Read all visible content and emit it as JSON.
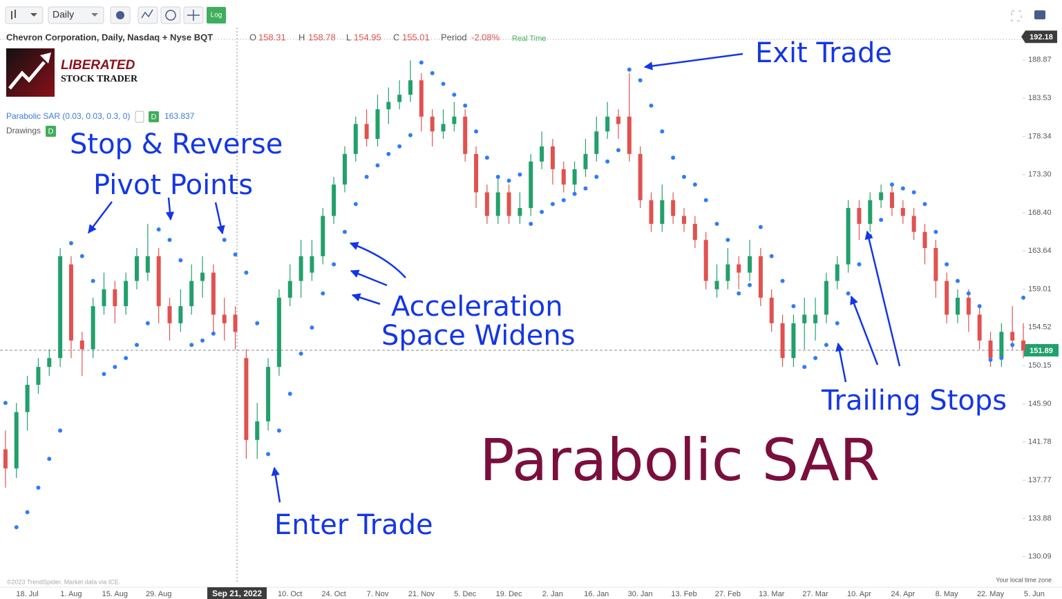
{
  "toolbar": {
    "interval": "Daily",
    "log_button": "Log"
  },
  "header": {
    "symbol": "Chevron Corporation, Daily, Nasdaq + Nyse BQT",
    "open_label": "O",
    "open": 158.31,
    "high_label": "H",
    "high": 158.78,
    "low_label": "L",
    "low": 154.95,
    "close_label": "C",
    "close": 155.01,
    "period_label": "Period",
    "period_change": "-2.08%",
    "feed": "Real Time"
  },
  "logo": {
    "line1": "LIBERATED",
    "line2": "STOCK TRADER"
  },
  "indicator": {
    "name": "Parabolic SAR (0.03, 0.03, 0.3, 0)",
    "badge": "D",
    "value": 163.837
  },
  "drawings": {
    "label": "Drawings",
    "badge": "D"
  },
  "annotations": {
    "stop_reverse": "Stop & Reverse",
    "pivot_points": "Pivot Points",
    "exit_trade": "Exit Trade",
    "acceleration": "Acceleration",
    "space_widens": "Space Widens",
    "enter_trade": "Enter Trade",
    "trailing_stops": "Trailing Stops",
    "big_title": "Parabolic SAR"
  },
  "crosshair_label": "Sep 21, 2022",
  "footer": {
    "credit": "©2023 TrendSpider. Market data via ICE.",
    "timezone": "Your local time zone"
  },
  "chart_data": {
    "type": "candlestick",
    "log_scale": true,
    "up_color": "#22a06b",
    "down_color": "#e0524f",
    "sar_color": "#2f7cf6",
    "ylim": [
      127.6,
      192.5
    ],
    "yticks": [
      188.87,
      183.53,
      178.34,
      {
        "value": 173.3,
        "label": "173.30"
      },
      {
        "value": 168.4,
        "label": "168.40"
      },
      163.64,
      159.01,
      154.52,
      150.15,
      {
        "value": 145.9,
        "label": "145.90"
      },
      141.78,
      137.77,
      133.88,
      130.09
    ],
    "last_price": 151.89,
    "top_tag": 192.18,
    "categories": [
      null,
      null,
      "18. Jul",
      null,
      null,
      null,
      "1. Aug",
      null,
      null,
      null,
      "15. Aug",
      null,
      null,
      null,
      "29. Aug",
      null,
      null,
      null,
      null,
      null,
      null,
      null,
      null,
      null,
      null,
      null,
      "10. Oct",
      null,
      null,
      null,
      "24. Oct",
      null,
      null,
      null,
      "7. Nov",
      null,
      null,
      null,
      "21. Nov",
      null,
      null,
      null,
      "5. Dec",
      null,
      null,
      null,
      "19. Dec",
      null,
      null,
      null,
      "2. Jan",
      null,
      null,
      null,
      "16. Jan",
      null,
      null,
      null,
      "30. Jan",
      null,
      null,
      null,
      "13. Feb",
      null,
      null,
      null,
      "27. Feb",
      null,
      null,
      null,
      "13. Mar",
      null,
      null,
      null,
      "27. Mar",
      null,
      null,
      null,
      "10. Apr",
      null,
      null,
      null,
      "24. Apr",
      null,
      null,
      null,
      "8. May",
      null,
      null,
      null,
      "22. May",
      null,
      null,
      null,
      "5. Jun"
    ],
    "ohlc": [
      [
        141,
        143,
        137,
        139
      ],
      [
        139,
        146,
        138,
        145
      ],
      [
        145,
        149,
        143,
        148
      ],
      [
        148,
        151,
        147,
        150
      ],
      [
        150,
        152,
        149,
        151
      ],
      [
        151,
        164,
        150,
        163
      ],
      [
        162,
        163,
        151,
        153
      ],
      [
        153,
        154,
        149,
        152
      ],
      [
        152,
        158,
        151,
        157
      ],
      [
        157,
        161,
        156,
        159
      ],
      [
        159,
        160,
        155,
        157
      ],
      [
        157,
        161,
        156,
        160
      ],
      [
        160,
        164,
        159,
        163
      ],
      [
        161,
        167,
        160,
        163
      ],
      [
        163,
        164,
        155,
        157
      ],
      [
        157,
        158,
        153,
        155
      ],
      [
        155,
        159,
        154,
        157
      ],
      [
        157,
        162,
        156,
        160
      ],
      [
        160,
        163,
        158,
        161
      ],
      [
        161,
        162,
        154,
        156
      ],
      [
        156,
        158,
        153,
        155
      ],
      [
        156,
        157,
        152,
        154
      ],
      [
        151,
        152,
        140,
        142
      ],
      [
        142,
        146,
        140,
        144
      ],
      [
        144,
        151,
        143,
        150
      ],
      [
        150,
        159,
        149,
        158
      ],
      [
        158,
        162,
        157,
        160
      ],
      [
        160,
        165,
        158,
        163
      ],
      [
        161,
        165,
        160,
        163
      ],
      [
        163,
        169,
        162,
        168
      ],
      [
        168,
        173,
        167,
        172
      ],
      [
        172,
        177,
        171,
        176
      ],
      [
        176,
        181,
        175,
        180
      ],
      [
        180,
        182,
        177,
        178
      ],
      [
        178,
        184,
        177,
        182
      ],
      [
        182,
        185,
        180,
        183
      ],
      [
        183,
        186,
        182,
        184
      ],
      [
        184,
        188.8,
        183,
        186
      ],
      [
        186,
        187,
        179,
        181
      ],
      [
        181,
        182,
        177,
        179
      ],
      [
        179,
        182,
        178,
        180
      ],
      [
        180,
        183,
        179,
        181
      ],
      [
        181,
        182,
        175,
        176
      ],
      [
        176,
        177,
        169,
        171
      ],
      [
        171,
        172,
        167,
        168
      ],
      [
        168,
        173,
        167,
        171
      ],
      [
        171,
        172,
        167,
        168
      ],
      [
        168,
        171,
        167,
        169
      ],
      [
        169,
        176,
        168,
        175
      ],
      [
        175,
        179,
        174,
        177
      ],
      [
        177,
        178,
        172,
        174
      ],
      [
        174,
        175,
        171,
        172
      ],
      [
        172,
        175,
        171,
        174
      ],
      [
        174,
        178,
        173,
        176
      ],
      [
        176,
        181,
        175,
        179
      ],
      [
        179,
        183,
        178,
        181
      ],
      [
        181,
        182,
        178,
        180
      ],
      [
        181,
        187,
        175,
        176
      ],
      [
        176,
        177,
        169,
        170
      ],
      [
        170,
        171,
        166,
        167
      ],
      [
        167,
        172,
        166,
        170
      ],
      [
        170,
        171,
        167,
        168
      ],
      [
        168,
        169,
        166,
        167
      ],
      [
        167,
        168,
        164,
        165
      ],
      [
        165,
        166,
        159,
        160
      ],
      [
        159,
        162,
        158,
        160
      ],
      [
        160,
        164,
        159,
        162
      ],
      [
        162,
        163,
        159,
        161
      ],
      [
        161,
        165,
        160,
        163
      ],
      [
        163,
        164,
        157,
        158
      ],
      [
        158,
        159,
        154,
        155
      ],
      [
        155,
        156,
        150,
        151
      ],
      [
        151,
        156,
        150,
        155
      ],
      [
        155,
        158,
        152,
        156
      ],
      [
        155,
        158,
        153,
        156
      ],
      [
        156,
        161,
        155,
        160
      ],
      [
        160,
        163,
        159,
        162
      ],
      [
        162,
        170,
        161,
        169
      ],
      [
        169,
        170,
        165,
        167
      ],
      [
        167,
        171,
        166,
        170
      ],
      [
        170,
        172,
        169,
        171
      ],
      [
        171,
        172,
        168,
        169
      ],
      [
        169,
        170,
        167,
        168
      ],
      [
        168,
        169,
        165,
        166
      ],
      [
        166,
        167,
        162,
        164
      ],
      [
        164,
        165,
        158,
        160
      ],
      [
        160,
        161,
        155,
        156
      ],
      [
        156,
        159,
        155,
        158
      ],
      [
        158,
        159,
        154,
        156
      ],
      [
        156,
        157,
        152,
        153
      ],
      [
        153,
        154,
        150,
        151
      ],
      [
        151,
        155,
        150,
        154
      ],
      [
        154,
        157,
        152,
        153
      ],
      [
        153,
        155,
        151,
        151.89
      ],
      null
    ],
    "sar": [
      146,
      133,
      134.5,
      137,
      140,
      143,
      164.6,
      163,
      160,
      149.2,
      150,
      151,
      152.5,
      155,
      166.3,
      165,
      162.5,
      152.5,
      153,
      153.8,
      165,
      163.2,
      161,
      155,
      140.5,
      143,
      147,
      151.5,
      154.5,
      158.5,
      162,
      166,
      169.5,
      173,
      174.5,
      176,
      177,
      178.5,
      188.5,
      187,
      185.5,
      184,
      182.5,
      179,
      175.5,
      173,
      172.5,
      173.3,
      167,
      168.5,
      169.5,
      170,
      170.8,
      171.5,
      173,
      175,
      176.5,
      187.5,
      186,
      182.5,
      179,
      175.5,
      173,
      172,
      170,
      167,
      165,
      158.5,
      159.5,
      166.6,
      163,
      160,
      157,
      150,
      151,
      152.5,
      155,
      158.5,
      162,
      165.5,
      167.5,
      172,
      171.5,
      171,
      169.5,
      166,
      162,
      160,
      158.5,
      157,
      150.8,
      151,
      152.5,
      158,
      null
    ]
  }
}
